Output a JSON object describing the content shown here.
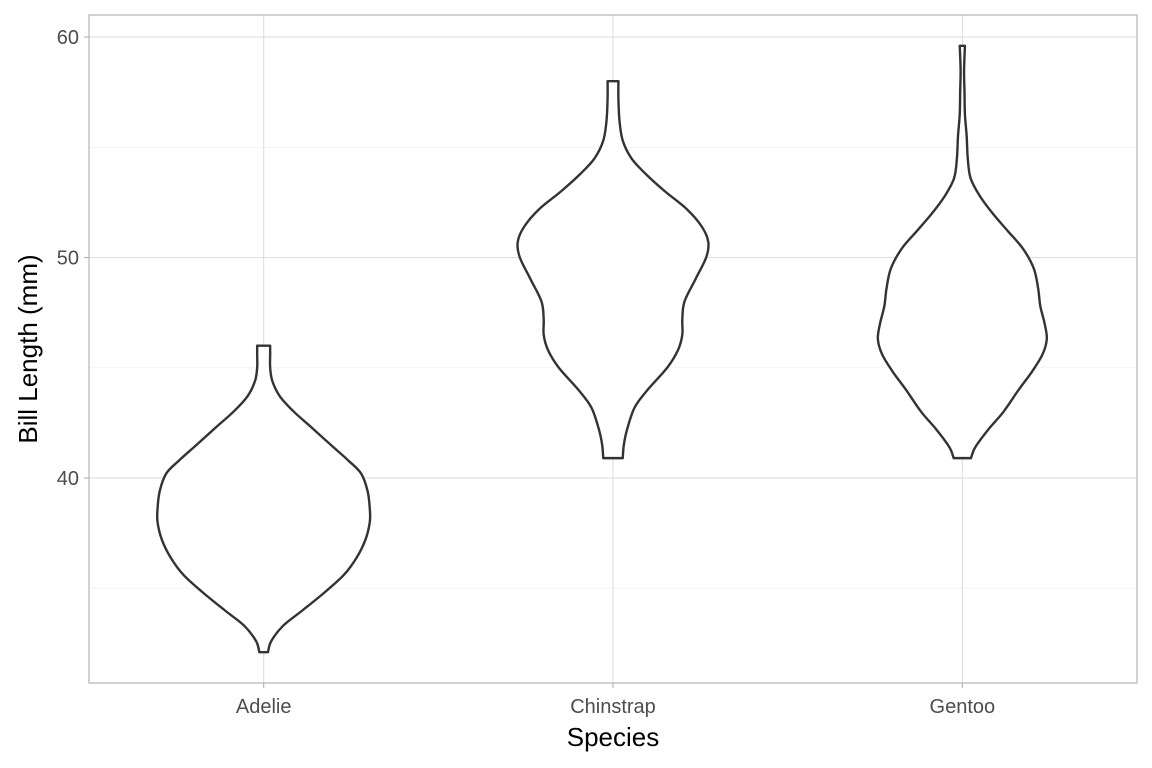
{
  "chart_data": {
    "type": "violin",
    "title": "",
    "xlabel": "Species",
    "ylabel": "Bill Length (mm)",
    "categories": [
      "Adelie",
      "Chinstrap",
      "Gentoo"
    ],
    "ylim": [
      30.7,
      61
    ],
    "yticks": [
      40,
      50,
      60
    ],
    "grid": true,
    "legend": "none",
    "outline_color": "#333333",
    "series": [
      {
        "category": "Adelie",
        "min": 32.1,
        "max": 46.0,
        "density_profile": [
          {
            "y": 32.1,
            "half_width": 0.02
          },
          {
            "y": 32.6,
            "half_width": 0.035
          },
          {
            "y": 33.3,
            "half_width": 0.09
          },
          {
            "y": 34.0,
            "half_width": 0.18
          },
          {
            "y": 34.8,
            "half_width": 0.28
          },
          {
            "y": 35.6,
            "half_width": 0.37
          },
          {
            "y": 36.4,
            "half_width": 0.43
          },
          {
            "y": 37.2,
            "half_width": 0.47
          },
          {
            "y": 38.0,
            "half_width": 0.49
          },
          {
            "y": 38.6,
            "half_width": 0.49
          },
          {
            "y": 39.4,
            "half_width": 0.48
          },
          {
            "y": 40.2,
            "half_width": 0.45
          },
          {
            "y": 40.8,
            "half_width": 0.39
          },
          {
            "y": 41.5,
            "half_width": 0.31
          },
          {
            "y": 42.3,
            "half_width": 0.22
          },
          {
            "y": 43.0,
            "half_width": 0.14
          },
          {
            "y": 43.7,
            "half_width": 0.075
          },
          {
            "y": 44.4,
            "half_width": 0.04
          },
          {
            "y": 45.0,
            "half_width": 0.03
          },
          {
            "y": 45.6,
            "half_width": 0.03
          },
          {
            "y": 46.0,
            "half_width": 0.03
          }
        ]
      },
      {
        "category": "Chinstrap",
        "min": 40.9,
        "max": 58.0,
        "density_profile": [
          {
            "y": 40.9,
            "half_width": 0.045
          },
          {
            "y": 41.5,
            "half_width": 0.05
          },
          {
            "y": 42.2,
            "half_width": 0.065
          },
          {
            "y": 43.2,
            "half_width": 0.1
          },
          {
            "y": 44.0,
            "half_width": 0.16
          },
          {
            "y": 45.0,
            "half_width": 0.25
          },
          {
            "y": 45.8,
            "half_width": 0.3
          },
          {
            "y": 46.5,
            "half_width": 0.32
          },
          {
            "y": 47.2,
            "half_width": 0.32
          },
          {
            "y": 48.0,
            "half_width": 0.33
          },
          {
            "y": 49.0,
            "half_width": 0.38
          },
          {
            "y": 50.0,
            "half_width": 0.43
          },
          {
            "y": 50.7,
            "half_width": 0.44
          },
          {
            "y": 51.4,
            "half_width": 0.41
          },
          {
            "y": 52.2,
            "half_width": 0.34
          },
          {
            "y": 53.0,
            "half_width": 0.24
          },
          {
            "y": 53.8,
            "half_width": 0.15
          },
          {
            "y": 54.5,
            "half_width": 0.085
          },
          {
            "y": 55.3,
            "half_width": 0.045
          },
          {
            "y": 56.2,
            "half_width": 0.03
          },
          {
            "y": 57.2,
            "half_width": 0.025
          },
          {
            "y": 58.0,
            "half_width": 0.025
          }
        ]
      },
      {
        "category": "Gentoo",
        "min": 40.9,
        "max": 59.6,
        "density_profile": [
          {
            "y": 40.9,
            "half_width": 0.04
          },
          {
            "y": 41.4,
            "half_width": 0.06
          },
          {
            "y": 42.2,
            "half_width": 0.12
          },
          {
            "y": 43.0,
            "half_width": 0.19
          },
          {
            "y": 44.0,
            "half_width": 0.26
          },
          {
            "y": 44.8,
            "half_width": 0.32
          },
          {
            "y": 45.6,
            "half_width": 0.37
          },
          {
            "y": 46.3,
            "half_width": 0.39
          },
          {
            "y": 47.0,
            "half_width": 0.38
          },
          {
            "y": 47.8,
            "half_width": 0.36
          },
          {
            "y": 48.6,
            "half_width": 0.35
          },
          {
            "y": 49.5,
            "half_width": 0.33
          },
          {
            "y": 50.4,
            "half_width": 0.28
          },
          {
            "y": 51.2,
            "half_width": 0.21
          },
          {
            "y": 52.0,
            "half_width": 0.14
          },
          {
            "y": 52.8,
            "half_width": 0.08
          },
          {
            "y": 53.6,
            "half_width": 0.038
          },
          {
            "y": 54.5,
            "half_width": 0.025
          },
          {
            "y": 55.5,
            "half_width": 0.02
          },
          {
            "y": 56.5,
            "half_width": 0.012
          },
          {
            "y": 57.5,
            "half_width": 0.01
          },
          {
            "y": 58.5,
            "half_width": 0.008
          },
          {
            "y": 59.6,
            "half_width": 0.012
          }
        ]
      }
    ]
  }
}
